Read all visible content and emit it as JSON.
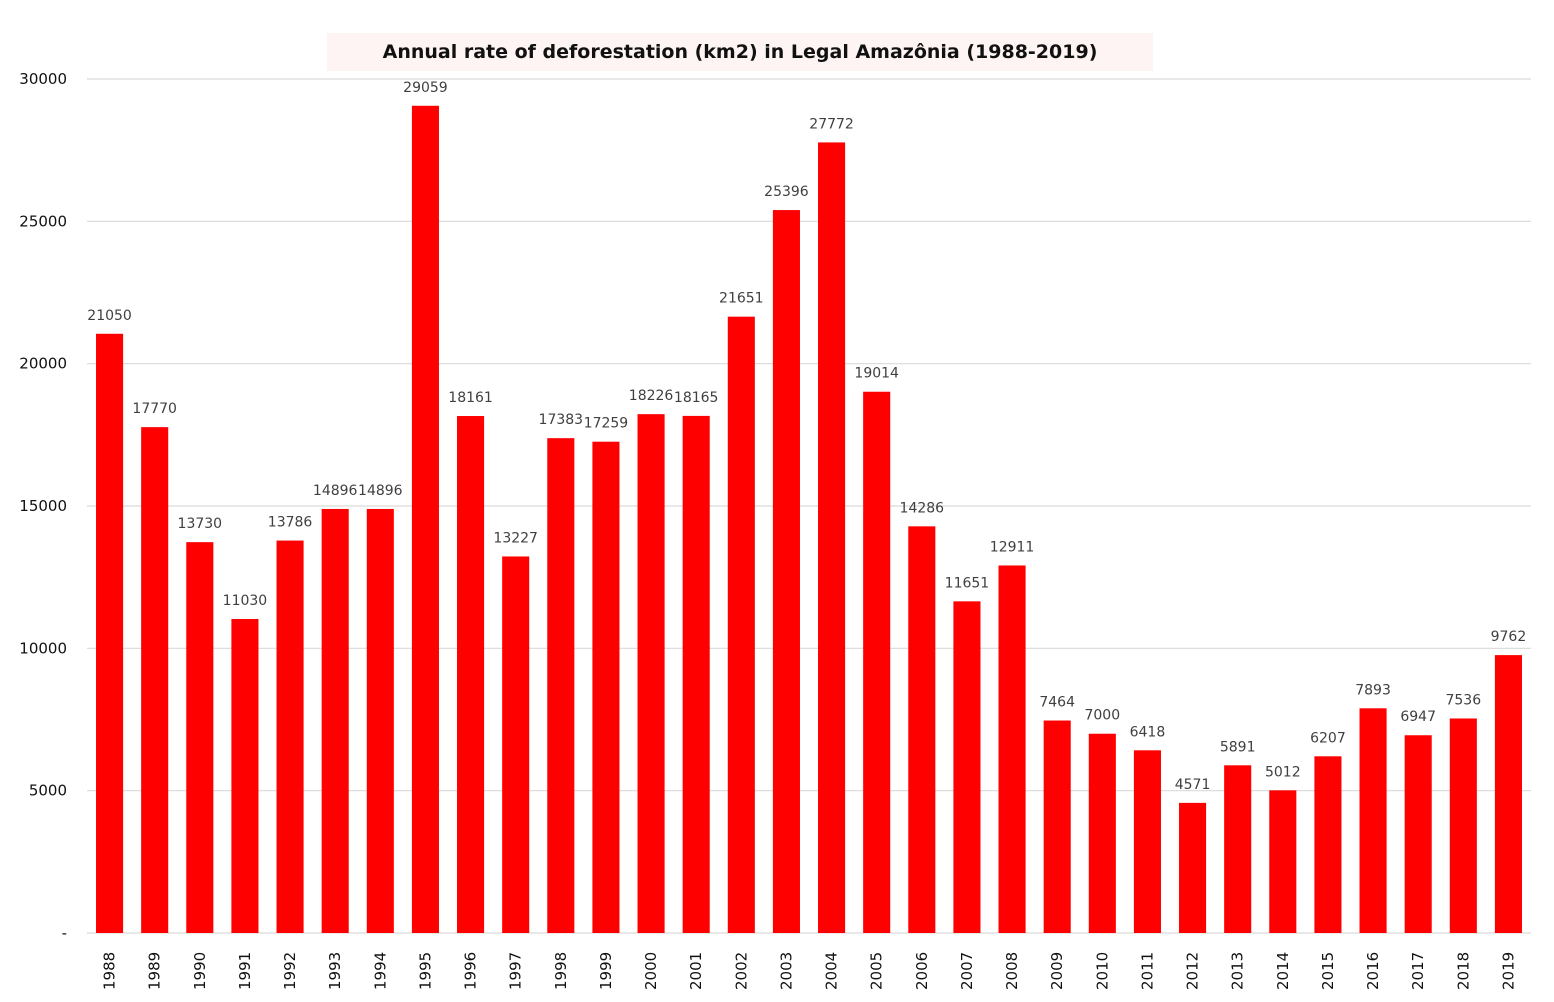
{
  "chart_data": {
    "type": "bar",
    "title": "Annual rate of deforestation (km2) in Legal Amazônia (1988-2019)",
    "xlabel": "",
    "ylabel": "",
    "ylim": [
      0,
      30000
    ],
    "yticks": [
      0,
      5000,
      10000,
      15000,
      20000,
      25000,
      30000
    ],
    "ytick_labels": [
      "-",
      "5000",
      "10000",
      "15000",
      "20000",
      "25000",
      "30000"
    ],
    "grid": true,
    "legend": "none",
    "bar_color": "#ff0000",
    "categories": [
      "1988",
      "1989",
      "1990",
      "1991",
      "1992",
      "1993",
      "1994",
      "1995",
      "1996",
      "1997",
      "1998",
      "1999",
      "2000",
      "2001",
      "2002",
      "2003",
      "2004",
      "2005",
      "2006",
      "2007",
      "2008",
      "2009",
      "2010",
      "2011",
      "2012",
      "2013",
      "2014",
      "2015",
      "2016",
      "2017",
      "2018",
      "2019"
    ],
    "values": [
      21050,
      17770,
      13730,
      11030,
      13786,
      14896,
      14896,
      29059,
      18161,
      13227,
      17383,
      17259,
      18226,
      18165,
      21651,
      25396,
      27772,
      19014,
      14286,
      11651,
      12911,
      7464,
      7000,
      6418,
      4571,
      5891,
      5012,
      6207,
      7893,
      6947,
      7536,
      9762
    ]
  }
}
